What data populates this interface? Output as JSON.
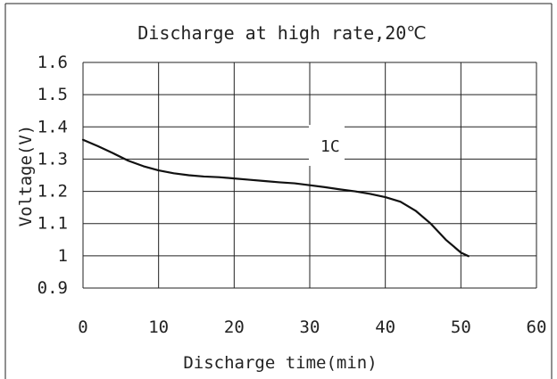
{
  "chart_data": {
    "type": "line",
    "title": "Discharge at high rate,20℃",
    "xlabel": "Discharge time(min)",
    "ylabel": "Voltage(V)",
    "xlim": [
      0,
      60
    ],
    "ylim": [
      0.9,
      1.6
    ],
    "x_ticks": [
      "0",
      "10",
      "20",
      "30",
      "40",
      "50",
      "60"
    ],
    "y_ticks": [
      "1.6",
      "1.5",
      "1.4",
      "1.3",
      "1.2",
      "1.1",
      "1",
      "0.9"
    ],
    "grid": true,
    "annotation": "1C",
    "series": [
      {
        "name": "1C",
        "points": [
          {
            "x": 0,
            "y": 1.36
          },
          {
            "x": 2,
            "y": 1.34
          },
          {
            "x": 4,
            "y": 1.318
          },
          {
            "x": 6,
            "y": 1.295
          },
          {
            "x": 8,
            "y": 1.278
          },
          {
            "x": 10,
            "y": 1.265
          },
          {
            "x": 12,
            "y": 1.256
          },
          {
            "x": 14,
            "y": 1.25
          },
          {
            "x": 16,
            "y": 1.246
          },
          {
            "x": 18,
            "y": 1.244
          },
          {
            "x": 20,
            "y": 1.24
          },
          {
            "x": 22,
            "y": 1.236
          },
          {
            "x": 24,
            "y": 1.232
          },
          {
            "x": 26,
            "y": 1.228
          },
          {
            "x": 28,
            "y": 1.225
          },
          {
            "x": 30,
            "y": 1.219
          },
          {
            "x": 32,
            "y": 1.213
          },
          {
            "x": 34,
            "y": 1.206
          },
          {
            "x": 36,
            "y": 1.2
          },
          {
            "x": 38,
            "y": 1.192
          },
          {
            "x": 40,
            "y": 1.182
          },
          {
            "x": 42,
            "y": 1.168
          },
          {
            "x": 44,
            "y": 1.14
          },
          {
            "x": 46,
            "y": 1.1
          },
          {
            "x": 48,
            "y": 1.05
          },
          {
            "x": 50,
            "y": 1.01
          },
          {
            "x": 51,
            "y": 0.999
          }
        ]
      }
    ],
    "line_color": "#111111",
    "grid_color": "#222222",
    "background_color": "#ffffff"
  }
}
